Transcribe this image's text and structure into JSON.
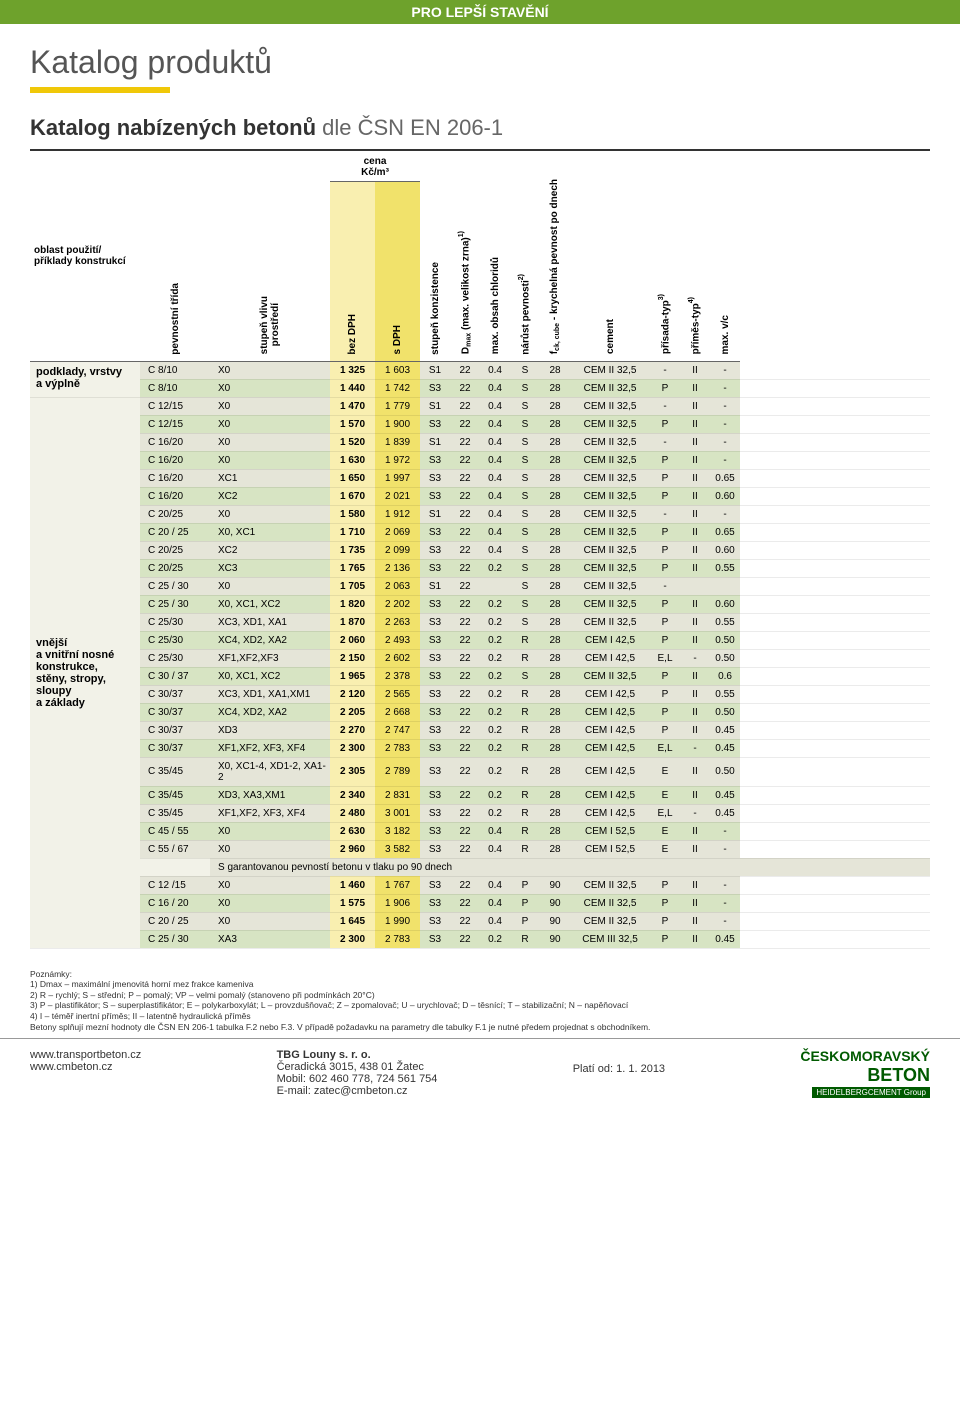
{
  "banner": "PRO LEPŠÍ STAVĚNÍ",
  "title": "Katalog produktů",
  "subtitle_bold": "Katalog nabízených betonů",
  "subtitle_light": " dle ČSN EN 206-1",
  "colors": {
    "banner_bg": "#6ea22c",
    "underline": "#f0c808",
    "price_bez_bg": "#f9efb0",
    "price_s_bg": "#f1e26b",
    "row_alt_a": "#e5e5d8",
    "row_alt_b": "#d7e4c3",
    "rowlabel_bg": "#f2f2e8"
  },
  "headers": {
    "area": "oblast použití/\npříklady konstrukcí",
    "class": "pevnostní třída",
    "env": "stupeň vlivu\nprostředí",
    "price_group": "cena\nKč/m³",
    "bez": "bez DPH",
    "s": "s DPH",
    "konz": "stupeň konzistence",
    "dmax": "D_max (max. velikost zrna)¹⁾",
    "cl": "max. obsah chloridů",
    "narust": "nárůst pevnosti²⁾",
    "fck": "f_ck, cube - krychelná pevnost po dnech",
    "cement": "cement",
    "prisada": "přísada-typ³⁾",
    "primes": "příměs-typ⁴⁾",
    "vc": "max. v/c"
  },
  "sections": [
    {
      "label": "podklady, vrstvy\na výplně",
      "rows": [
        [
          "C 8/10",
          "X0",
          "1 325",
          "1 603",
          "S1",
          "22",
          "0.4",
          "S",
          "28",
          "CEM II 32,5",
          "-",
          "II",
          "-"
        ],
        [
          "C 8/10",
          "X0",
          "1 440",
          "1 742",
          "S3",
          "22",
          "0.4",
          "S",
          "28",
          "CEM II 32,5",
          "P",
          "II",
          "-"
        ]
      ]
    },
    {
      "label": "vnější\na vnitřní nosné\nkonstrukce,\nstěny, stropy,\nsloupy\na základy",
      "rows": [
        [
          "C 12/15",
          "X0",
          "1 470",
          "1 779",
          "S1",
          "22",
          "0.4",
          "S",
          "28",
          "CEM II 32,5",
          "-",
          "II",
          "-"
        ],
        [
          "C 12/15",
          "X0",
          "1 570",
          "1 900",
          "S3",
          "22",
          "0.4",
          "S",
          "28",
          "CEM II 32,5",
          "P",
          "II",
          "-"
        ],
        [
          "C 16/20",
          "X0",
          "1 520",
          "1 839",
          "S1",
          "22",
          "0.4",
          "S",
          "28",
          "CEM II 32,5",
          "-",
          "II",
          "-"
        ],
        [
          "C 16/20",
          "X0",
          "1 630",
          "1 972",
          "S3",
          "22",
          "0.4",
          "S",
          "28",
          "CEM II 32,5",
          "P",
          "II",
          "-"
        ],
        [
          "C 16/20",
          "XC1",
          "1 650",
          "1 997",
          "S3",
          "22",
          "0.4",
          "S",
          "28",
          "CEM II 32,5",
          "P",
          "II",
          "0.65"
        ],
        [
          "C 16/20",
          "XC2",
          "1 670",
          "2 021",
          "S3",
          "22",
          "0.4",
          "S",
          "28",
          "CEM II 32,5",
          "P",
          "II",
          "0.60"
        ],
        [
          "C 20/25",
          "X0",
          "1 580",
          "1 912",
          "S1",
          "22",
          "0.4",
          "S",
          "28",
          "CEM II 32,5",
          "-",
          "II",
          "-"
        ],
        [
          "C 20 / 25",
          "X0, XC1",
          "1 710",
          "2 069",
          "S3",
          "22",
          "0.4",
          "S",
          "28",
          "CEM II 32,5",
          "P",
          "II",
          "0.65"
        ],
        [
          "C 20/25",
          "XC2",
          "1 735",
          "2 099",
          "S3",
          "22",
          "0.4",
          "S",
          "28",
          "CEM II 32,5",
          "P",
          "II",
          "0.60"
        ],
        [
          "C 20/25",
          "XC3",
          "1 765",
          "2 136",
          "S3",
          "22",
          "0.2",
          "S",
          "28",
          "CEM II 32,5",
          "P",
          "II",
          "0.55"
        ],
        [
          "C 25 / 30",
          "X0",
          "1 705",
          "2 063",
          "S1",
          "22",
          "",
          "S",
          "28",
          "CEM II 32,5",
          "-",
          "",
          ""
        ],
        [
          "C 25 / 30",
          "X0, XC1, XC2",
          "1 820",
          "2 202",
          "S3",
          "22",
          "0.2",
          "S",
          "28",
          "CEM II 32,5",
          "P",
          "II",
          "0.60"
        ],
        [
          "C 25/30",
          "XC3, XD1, XA1",
          "1 870",
          "2 263",
          "S3",
          "22",
          "0.2",
          "S",
          "28",
          "CEM II 32,5",
          "P",
          "II",
          "0.55"
        ],
        [
          "C 25/30",
          "XC4, XD2, XA2",
          "2 060",
          "2 493",
          "S3",
          "22",
          "0.2",
          "R",
          "28",
          "CEM I 42,5",
          "P",
          "II",
          "0.50"
        ],
        [
          "C 25/30",
          "XF1,XF2,XF3",
          "2 150",
          "2 602",
          "S3",
          "22",
          "0.2",
          "R",
          "28",
          "CEM I 42,5",
          "E,L",
          "-",
          "0.50"
        ],
        [
          "C 30 / 37",
          "X0, XC1, XC2",
          "1 965",
          "2 378",
          "S3",
          "22",
          "0.2",
          "S",
          "28",
          "CEM II 32,5",
          "P",
          "II",
          "0.6"
        ],
        [
          "C 30/37",
          "XC3, XD1, XA1,XM1",
          "2 120",
          "2 565",
          "S3",
          "22",
          "0.2",
          "R",
          "28",
          "CEM I 42,5",
          "P",
          "II",
          "0.55"
        ],
        [
          "C 30/37",
          "XC4, XD2, XA2",
          "2 205",
          "2 668",
          "S3",
          "22",
          "0.2",
          "R",
          "28",
          "CEM I 42,5",
          "P",
          "II",
          "0.50"
        ],
        [
          "C 30/37",
          "XD3",
          "2 270",
          "2 747",
          "S3",
          "22",
          "0.2",
          "R",
          "28",
          "CEM I 42,5",
          "P",
          "II",
          "0.45"
        ],
        [
          "C 30/37",
          "XF1,XF2, XF3, XF4",
          "2 300",
          "2 783",
          "S3",
          "22",
          "0.2",
          "R",
          "28",
          "CEM I 42,5",
          "E,L",
          "-",
          "0.45"
        ],
        [
          "C 35/45",
          "X0, XC1-4, XD1-2, XA1-2",
          "2 305",
          "2 789",
          "S3",
          "22",
          "0.2",
          "R",
          "28",
          "CEM I 42,5",
          "E",
          "II",
          "0.50"
        ],
        [
          "C 35/45",
          "XD3, XA3,XM1",
          "2 340",
          "2 831",
          "S3",
          "22",
          "0.2",
          "R",
          "28",
          "CEM I 42,5",
          "E",
          "II",
          "0.45"
        ],
        [
          "C 35/45",
          "XF1,XF2, XF3, XF4",
          "2 480",
          "3 001",
          "S3",
          "22",
          "0.2",
          "R",
          "28",
          "CEM I 42,5",
          "E,L",
          "-",
          "0.45"
        ],
        [
          "C 45 / 55",
          "X0",
          "2 630",
          "3 182",
          "S3",
          "22",
          "0.4",
          "R",
          "28",
          "CEM I 52,5",
          "E",
          "II",
          "-"
        ],
        [
          "C 55 / 67",
          "X0",
          "2 960",
          "3 582",
          "S3",
          "22",
          "0.4",
          "R",
          "28",
          "CEM I 52,5",
          "E",
          "II",
          "-"
        ]
      ],
      "subheader": "S garantovanou pevností betonu v tlaku po 90 dnech",
      "rows2": [
        [
          "C 12 /15",
          "X0",
          "1 460",
          "1 767",
          "S3",
          "22",
          "0.4",
          "P",
          "90",
          "CEM II 32,5",
          "P",
          "II",
          "-"
        ],
        [
          "C 16 / 20",
          "X0",
          "1 575",
          "1 906",
          "S3",
          "22",
          "0.4",
          "P",
          "90",
          "CEM II 32,5",
          "P",
          "II",
          "-"
        ],
        [
          "C 20 / 25",
          "X0",
          "1 645",
          "1 990",
          "S3",
          "22",
          "0.4",
          "P",
          "90",
          "CEM II 32,5",
          "P",
          "II",
          "-"
        ],
        [
          "C 25 / 30",
          "XA3",
          "2 300",
          "2 783",
          "S3",
          "22",
          "0.2",
          "R",
          "90",
          "CEM III 32,5",
          "P",
          "II",
          "0.45"
        ]
      ]
    }
  ],
  "notes": {
    "title": "Poznámky:",
    "lines": [
      "1) Dmax – maximální jmenovitá horní mez frakce kameniva",
      "2) R – rychlý; S – střední; P – pomalý; VP – velmi pomalý (stanoveno při podmínkách 20°C)",
      "3) P – plastifikátor; S – superplastifikátor; E – polykarboxylát; L – provzdušňovač; Z – zpomalovač; U – urychlovač; D – těsnící; T – stabilizační; N – napěňovací",
      "4) I – téměř inertní příměs; II – latentně hydraulická příměs",
      "Betony splňují mezní hodnoty dle ČSN EN 206-1 tabulka F.2 nebo F.3. V případě požadavku na parametry dle tabulky F.1 je nutné předem projednat s obchodníkem."
    ]
  },
  "footer": {
    "link1": "www.transportbeton.cz",
    "link2": "www.cmbeton.cz",
    "company": "TBG Louny s. r. o.",
    "address": "Čeradická 3015, 438 01 Žatec",
    "mobile": "Mobil: 602 460 778, 724 561 754",
    "email": "E-mail: zatec@cmbeton.cz",
    "valid": "Platí od: 1. 1. 2013",
    "logo_line1": "ČESKOMORAVSKÝ",
    "logo_line2": "BETON",
    "logo_tag": "HEIDELBERGCEMENT Group"
  }
}
